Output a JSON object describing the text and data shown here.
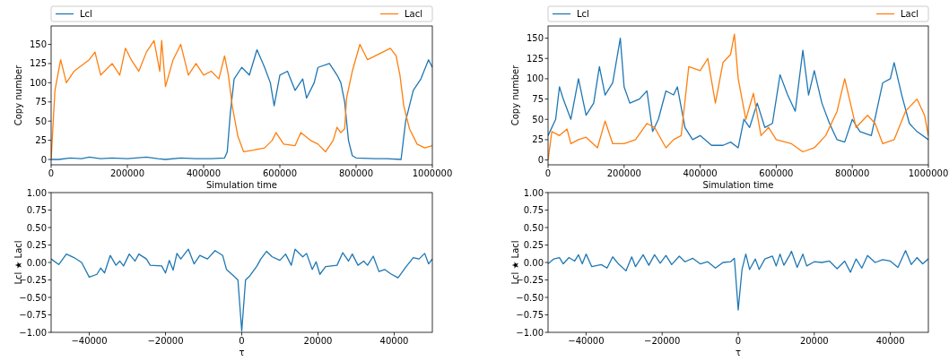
{
  "chart_data": [
    {
      "type": "line",
      "xlabel": "Simulation time",
      "ylabel": "Copy number",
      "legend": "top",
      "xlim": [
        0,
        1000000
      ],
      "ylim": [
        -7,
        174
      ],
      "xticks": [
        0,
        200000,
        400000,
        600000,
        800000,
        1000000
      ],
      "yticks": [
        0,
        25,
        50,
        75,
        100,
        125,
        150
      ],
      "series": [
        {
          "name": "Lcl",
          "color": "#1f77b4",
          "x": [
            0,
            20000,
            50000,
            80000,
            100000,
            130000,
            160000,
            200000,
            250000,
            280000,
            300000,
            340000,
            380000,
            420000,
            455000,
            462000,
            470000,
            480000,
            500000,
            520000,
            540000,
            560000,
            575000,
            585000,
            600000,
            620000,
            640000,
            660000,
            670000,
            690000,
            700000,
            730000,
            750000,
            760000,
            770000,
            780000,
            790000,
            800000,
            850000,
            880000,
            918000,
            930000,
            950000,
            970000,
            990000,
            1000000
          ],
          "values": [
            0,
            0,
            2,
            1,
            3,
            1,
            2,
            1,
            3,
            1,
            0,
            2,
            1,
            1,
            2,
            10,
            60,
            105,
            120,
            110,
            143,
            120,
            100,
            70,
            110,
            115,
            90,
            105,
            80,
            100,
            120,
            125,
            110,
            100,
            75,
            25,
            5,
            2,
            1,
            1,
            0,
            50,
            90,
            105,
            130,
            120
          ]
        },
        {
          "name": "Lacl",
          "color": "#ff7f0e",
          "x": [
            0,
            10000,
            25000,
            40000,
            60000,
            100000,
            115000,
            130000,
            160000,
            180000,
            195000,
            210000,
            230000,
            250000,
            270000,
            285000,
            290000,
            300000,
            320000,
            340000,
            360000,
            380000,
            400000,
            420000,
            440000,
            455000,
            465000,
            475000,
            490000,
            505000,
            530000,
            560000,
            580000,
            590000,
            610000,
            640000,
            655000,
            680000,
            700000,
            720000,
            740000,
            750000,
            760000,
            770000,
            775000,
            790000,
            810000,
            830000,
            850000,
            870000,
            890000,
            905000,
            915000,
            925000,
            940000,
            960000,
            980000,
            1000000
          ],
          "values": [
            0,
            90,
            130,
            100,
            115,
            130,
            140,
            110,
            125,
            110,
            145,
            130,
            115,
            140,
            155,
            115,
            155,
            95,
            130,
            150,
            110,
            125,
            110,
            115,
            105,
            135,
            110,
            70,
            30,
            10,
            12,
            15,
            25,
            35,
            20,
            18,
            35,
            25,
            20,
            10,
            25,
            42,
            35,
            40,
            80,
            115,
            150,
            130,
            135,
            140,
            145,
            135,
            110,
            70,
            40,
            20,
            15,
            18
          ]
        }
      ]
    },
    {
      "type": "line",
      "xlabel": "Simulation time",
      "ylabel": "Copy number",
      "legend": "top",
      "xlim": [
        0,
        1000000
      ],
      "ylim": [
        -6,
        165
      ],
      "xticks": [
        0,
        200000,
        400000,
        600000,
        800000,
        1000000
      ],
      "yticks": [
        0,
        25,
        50,
        75,
        100,
        125,
        150
      ],
      "series": [
        {
          "name": "Lcl",
          "color": "#1f77b4",
          "x": [
            0,
            20000,
            30000,
            40000,
            60000,
            80000,
            100000,
            120000,
            135000,
            150000,
            170000,
            190000,
            200000,
            215000,
            240000,
            260000,
            275000,
            290000,
            310000,
            330000,
            340000,
            360000,
            380000,
            400000,
            430000,
            460000,
            480000,
            500000,
            515000,
            530000,
            550000,
            570000,
            590000,
            610000,
            630000,
            650000,
            670000,
            685000,
            700000,
            720000,
            740000,
            760000,
            780000,
            800000,
            820000,
            850000,
            880000,
            900000,
            910000,
            930000,
            950000,
            970000,
            1000000
          ],
          "values": [
            30,
            50,
            90,
            75,
            50,
            100,
            55,
            70,
            115,
            80,
            95,
            150,
            90,
            70,
            75,
            85,
            35,
            50,
            85,
            80,
            90,
            40,
            25,
            30,
            18,
            18,
            22,
            15,
            50,
            40,
            70,
            40,
            45,
            105,
            80,
            60,
            135,
            80,
            110,
            70,
            45,
            25,
            22,
            50,
            35,
            30,
            95,
            100,
            120,
            80,
            45,
            35,
            25
          ]
        },
        {
          "name": "Lacl",
          "color": "#ff7f0e",
          "x": [
            0,
            10000,
            30000,
            50000,
            60000,
            80000,
            100000,
            130000,
            150000,
            170000,
            200000,
            230000,
            260000,
            280000,
            310000,
            330000,
            350000,
            370000,
            400000,
            420000,
            440000,
            460000,
            480000,
            490000,
            500000,
            520000,
            540000,
            560000,
            580000,
            600000,
            640000,
            670000,
            700000,
            730000,
            760000,
            780000,
            810000,
            840000,
            860000,
            880000,
            910000,
            940000,
            970000,
            990000,
            1000000
          ],
          "values": [
            0,
            35,
            30,
            38,
            20,
            25,
            28,
            15,
            48,
            20,
            20,
            25,
            45,
            40,
            15,
            25,
            30,
            115,
            110,
            125,
            70,
            120,
            130,
            155,
            100,
            50,
            82,
            30,
            40,
            25,
            20,
            10,
            15,
            30,
            60,
            100,
            40,
            55,
            45,
            20,
            25,
            60,
            75,
            55,
            30
          ]
        }
      ]
    },
    {
      "type": "line",
      "xlabel": "τ",
      "ylabel": "Lcl ★ Lacl",
      "xlim": [
        -50000,
        50000
      ],
      "ylim": [
        -1,
        1
      ],
      "xticks": [
        -40000,
        -20000,
        0,
        20000,
        40000
      ],
      "yticks": [
        {
          "value": -1,
          "label": "−1.00"
        },
        {
          "value": -0.75,
          "label": "−0.75"
        },
        {
          "value": -0.5,
          "label": "−0.50"
        },
        {
          "value": -0.25,
          "label": "−0.25"
        },
        {
          "value": 0,
          "label": "0.00"
        },
        {
          "value": 0.25,
          "label": "0.25"
        },
        {
          "value": 0.5,
          "label": "0.50"
        },
        {
          "value": 0.75,
          "label": "0.75"
        },
        {
          "value": 1,
          "label": "1.00"
        }
      ],
      "series": [
        {
          "color": "#1f77b4",
          "x": [
            -50000,
            -48000,
            -46000,
            -44000,
            -42000,
            -40000,
            -38000,
            -37000,
            -36000,
            -34500,
            -33000,
            -32000,
            -31000,
            -29500,
            -28000,
            -27000,
            -25000,
            -24000,
            -21000,
            -20000,
            -19000,
            -18000,
            -17000,
            -16000,
            -14000,
            -12500,
            -11000,
            -9000,
            -7000,
            -5000,
            -4000,
            -2000,
            -1000,
            0,
            1000,
            2000,
            4000,
            5000,
            6500,
            8000,
            10000,
            11500,
            13000,
            14000,
            16000,
            17000,
            18500,
            19500,
            20500,
            22000,
            25000,
            26500,
            28000,
            29000,
            30500,
            32000,
            33000,
            34500,
            36000,
            37500,
            39000,
            41000,
            43000,
            45000,
            46500,
            48000,
            49000,
            50000
          ],
          "values": [
            0.05,
            -0.03,
            0.12,
            0.07,
            0.0,
            -0.21,
            -0.17,
            -0.08,
            -0.15,
            0.1,
            -0.04,
            0.02,
            -0.05,
            0.12,
            0.02,
            0.12,
            0.05,
            -0.04,
            -0.05,
            -0.15,
            0.03,
            -0.11,
            0.13,
            0.05,
            0.19,
            -0.02,
            0.1,
            0.05,
            0.17,
            0.1,
            -0.1,
            -0.2,
            -0.25,
            -0.98,
            -0.25,
            -0.2,
            -0.05,
            0.05,
            0.16,
            0.08,
            0.03,
            0.12,
            -0.04,
            0.19,
            0.08,
            0.13,
            -0.1,
            0.01,
            -0.17,
            -0.06,
            -0.04,
            0.14,
            0.02,
            0.12,
            -0.04,
            0.02,
            -0.04,
            0.09,
            -0.13,
            -0.1,
            -0.16,
            -0.22,
            -0.07,
            0.07,
            0.05,
            0.13,
            -0.02,
            0.05
          ]
        }
      ]
    },
    {
      "type": "line",
      "xlabel": "τ",
      "ylabel": "Lcl ★ Lacl",
      "xlim": [
        -50000,
        50000
      ],
      "ylim": [
        -1,
        1
      ],
      "xticks": [
        -40000,
        -20000,
        0,
        20000,
        40000
      ],
      "yticks": [
        {
          "value": -1,
          "label": "−1.00"
        },
        {
          "value": -0.75,
          "label": "−0.75"
        },
        {
          "value": -0.5,
          "label": "−0.50"
        },
        {
          "value": -0.25,
          "label": "−0.25"
        },
        {
          "value": 0,
          "label": "0.00"
        },
        {
          "value": 0.25,
          "label": "0.25"
        },
        {
          "value": 0.5,
          "label": "0.50"
        },
        {
          "value": 0.75,
          "label": "0.75"
        },
        {
          "value": 1,
          "label": "1.00"
        }
      ],
      "series": [
        {
          "color": "#1f77b4",
          "x": [
            -50000,
            -48500,
            -47000,
            -46000,
            -44500,
            -43000,
            -42000,
            -41000,
            -40000,
            -38500,
            -36000,
            -34500,
            -33000,
            -31500,
            -29500,
            -28000,
            -27000,
            -25000,
            -23500,
            -22000,
            -20500,
            -19000,
            -17500,
            -15500,
            -14000,
            -12000,
            -10000,
            -8000,
            -6000,
            -4000,
            -2000,
            -1000,
            0,
            1000,
            2000,
            3000,
            4500,
            5500,
            7000,
            9000,
            10000,
            11000,
            12000,
            13500,
            14000,
            15500,
            17000,
            18000,
            20000,
            22000,
            24000,
            26000,
            28000,
            29500,
            31000,
            32500,
            34000,
            36000,
            38000,
            40000,
            42000,
            44000,
            45500,
            47000,
            48500,
            50000
          ],
          "values": [
            -0.02,
            0.05,
            0.07,
            -0.02,
            0.07,
            0.02,
            0.11,
            -0.02,
            0.12,
            -0.06,
            -0.03,
            -0.08,
            0.08,
            -0.02,
            -0.12,
            0.08,
            -0.06,
            0.11,
            -0.04,
            0.11,
            -0.01,
            0.1,
            -0.03,
            0.09,
            0.01,
            0.06,
            -0.02,
            0.01,
            -0.08,
            0.0,
            0.01,
            0.06,
            -0.68,
            -0.1,
            0.12,
            -0.1,
            0.05,
            -0.1,
            0.05,
            0.09,
            -0.05,
            0.12,
            -0.04,
            0.1,
            0.16,
            -0.07,
            0.12,
            -0.05,
            0.01,
            0.0,
            0.02,
            -0.09,
            0.02,
            -0.14,
            0.05,
            -0.08,
            0.1,
            0.0,
            0.04,
            0.02,
            -0.07,
            0.17,
            -0.03,
            0.07,
            -0.02,
            0.05
          ]
        }
      ]
    }
  ]
}
